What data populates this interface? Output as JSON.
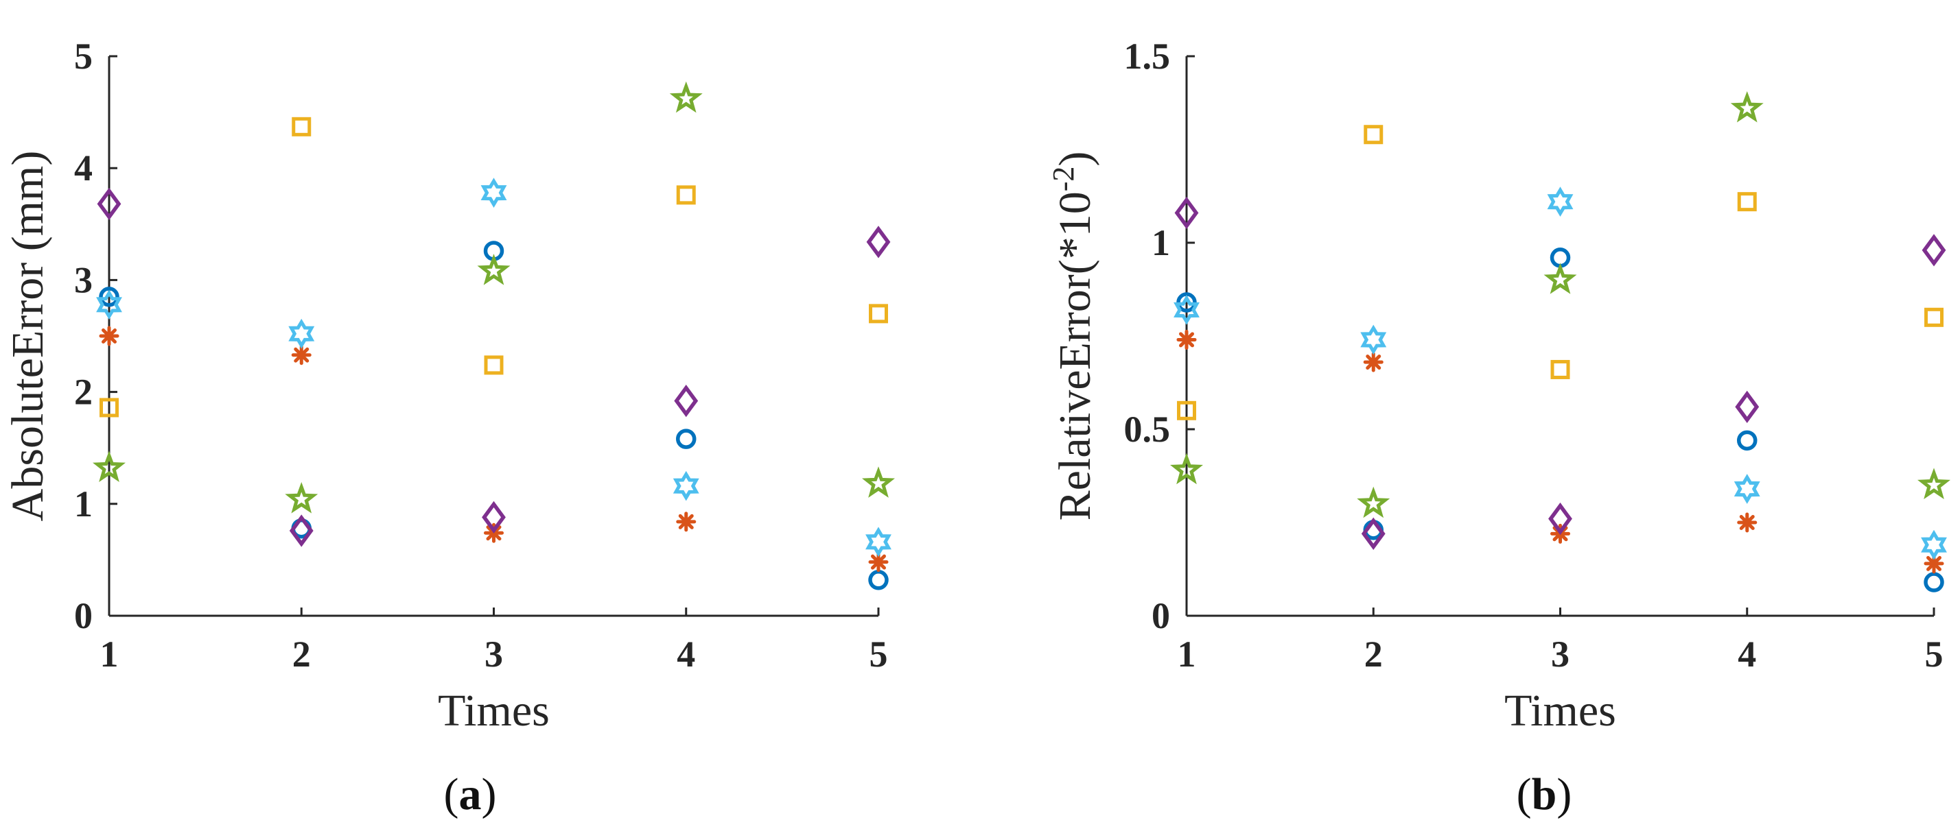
{
  "colors": {
    "axis": "#262626",
    "circle": "#0072BD",
    "asterisk": "#D95319",
    "square": "#EDB120",
    "diamond": "#7E2F8E",
    "pentagram": "#77AC30",
    "hexagram": "#4DBEEE"
  },
  "chart_data": [
    {
      "type": "scatter",
      "panel_label": "a",
      "xlabel": "Times",
      "ylabel": "AbsoluteError (mm)",
      "ylabel_sup": "",
      "ylabel_after": "",
      "xlim": [
        1,
        5
      ],
      "ylim": [
        0,
        5
      ],
      "xticks": [
        "1",
        "2",
        "3",
        "4",
        "5"
      ],
      "yticks": [
        "0",
        "1",
        "2",
        "3",
        "4",
        "5"
      ],
      "x": [
        1,
        2,
        3,
        4,
        5
      ],
      "series": [
        {
          "marker": "circle",
          "color": "#0072BD",
          "values": [
            2.85,
            0.78,
            3.26,
            1.58,
            0.32
          ]
        },
        {
          "marker": "asterisk",
          "color": "#D95319",
          "values": [
            2.5,
            2.33,
            0.74,
            0.84,
            0.48
          ]
        },
        {
          "marker": "square",
          "color": "#EDB120",
          "values": [
            1.86,
            4.37,
            2.24,
            3.76,
            2.7
          ]
        },
        {
          "marker": "diamond",
          "color": "#7E2F8E",
          "values": [
            3.68,
            0.76,
            0.88,
            1.92,
            3.34
          ]
        },
        {
          "marker": "pentagram",
          "color": "#77AC30",
          "values": [
            1.32,
            1.04,
            3.08,
            4.62,
            1.18
          ]
        },
        {
          "marker": "hexagram",
          "color": "#4DBEEE",
          "values": [
            2.78,
            2.52,
            3.78,
            1.16,
            0.66
          ]
        }
      ]
    },
    {
      "type": "scatter",
      "panel_label": "b",
      "xlabel": "Times",
      "ylabel": "RelativeError(*10",
      "ylabel_sup": "-2",
      "ylabel_after": ")",
      "xlim": [
        1,
        5
      ],
      "ylim": [
        0,
        1.5
      ],
      "xticks": [
        "1",
        "2",
        "3",
        "4",
        "5"
      ],
      "yticks": [
        "0",
        "0.5",
        "1",
        "1.5"
      ],
      "x": [
        1,
        2,
        3,
        4,
        5
      ],
      "series": [
        {
          "marker": "circle",
          "color": "#0072BD",
          "values": [
            0.84,
            0.23,
            0.96,
            0.47,
            0.09
          ]
        },
        {
          "marker": "asterisk",
          "color": "#D95319",
          "values": [
            0.74,
            0.68,
            0.22,
            0.25,
            0.14
          ]
        },
        {
          "marker": "square",
          "color": "#EDB120",
          "values": [
            0.55,
            1.29,
            0.66,
            1.11,
            0.8
          ]
        },
        {
          "marker": "diamond",
          "color": "#7E2F8E",
          "values": [
            1.08,
            0.22,
            0.26,
            0.56,
            0.98
          ]
        },
        {
          "marker": "pentagram",
          "color": "#77AC30",
          "values": [
            0.39,
            0.3,
            0.9,
            1.36,
            0.35
          ]
        },
        {
          "marker": "hexagram",
          "color": "#4DBEEE",
          "values": [
            0.82,
            0.74,
            1.11,
            0.34,
            0.19
          ]
        }
      ]
    }
  ]
}
